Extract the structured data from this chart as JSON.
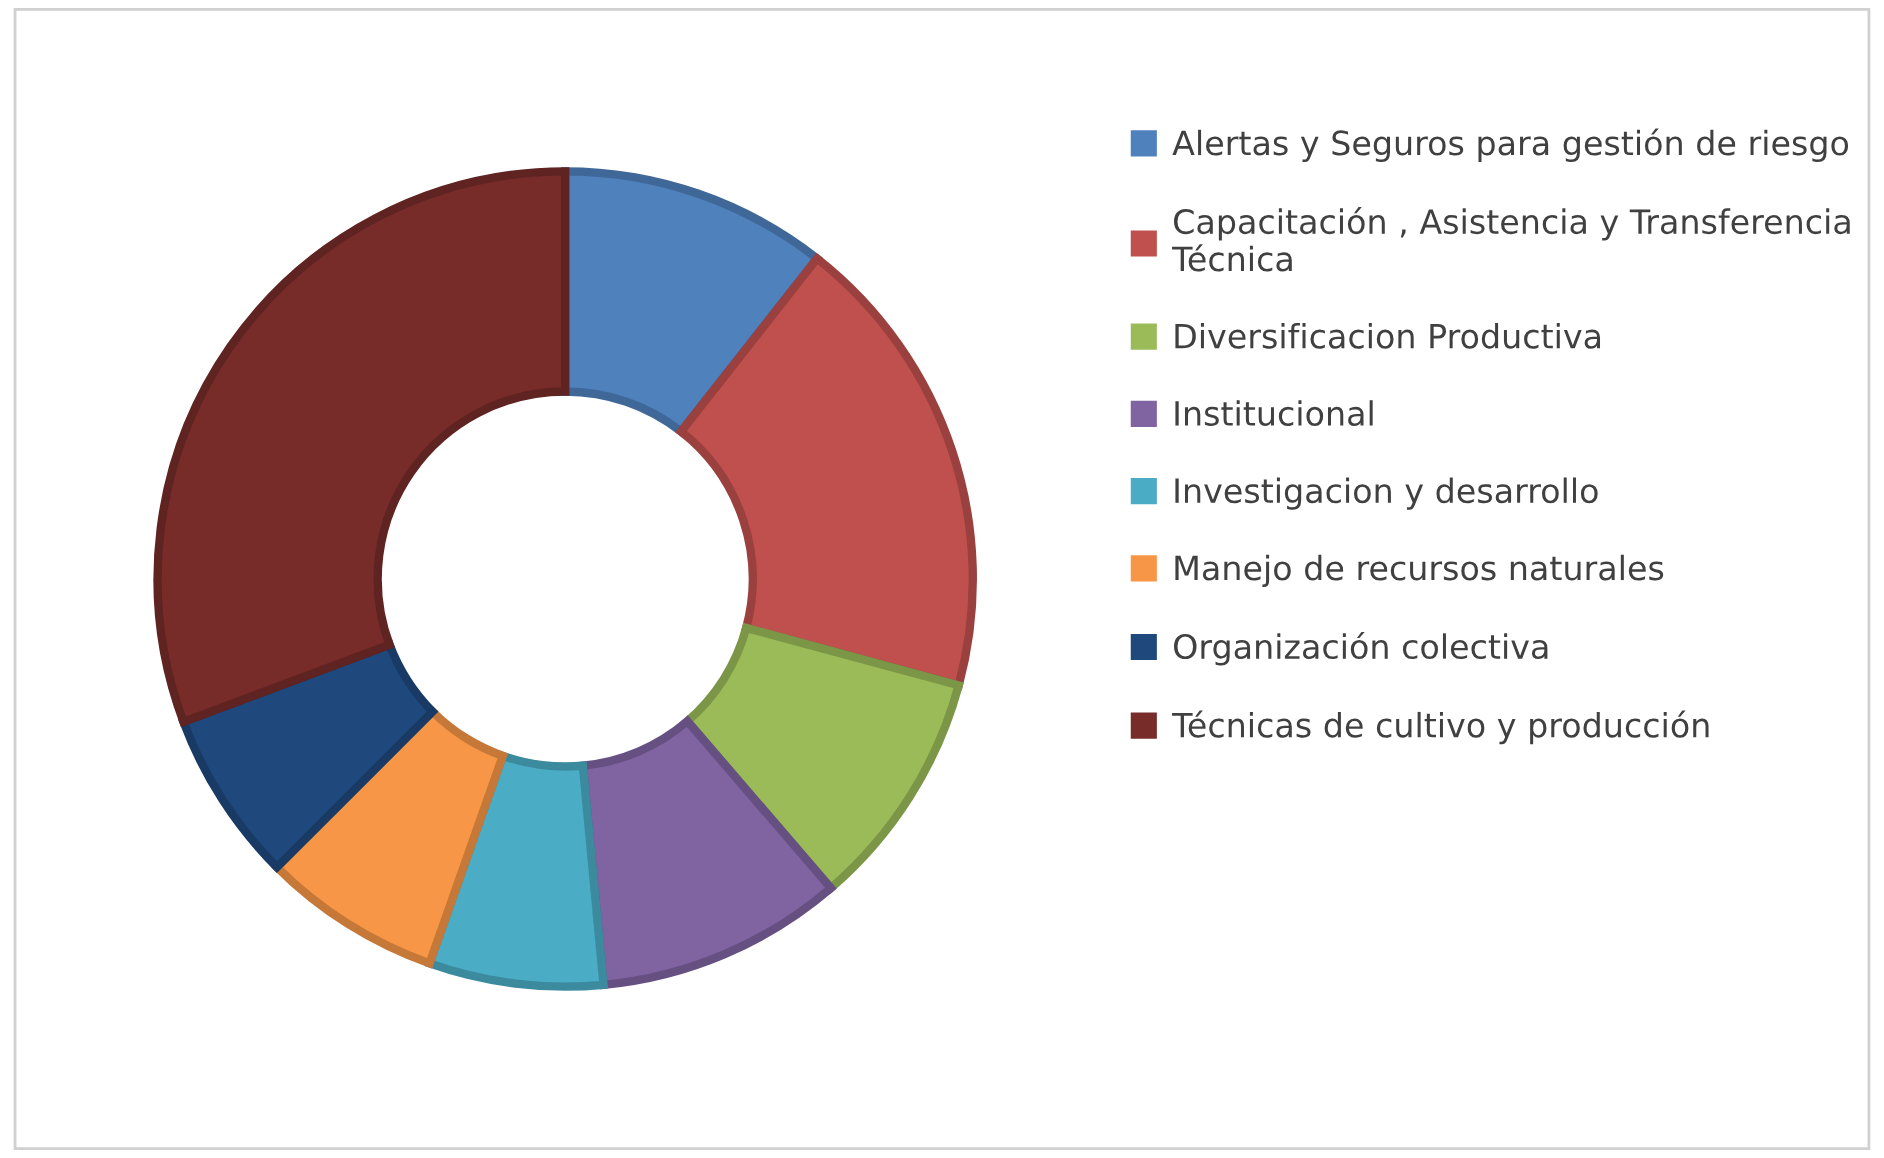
{
  "chart_data": {
    "type": "donut",
    "categories": [
      "Alertas y Seguros para gestión de riesgo",
      "Capacitación , Asistencia y Transferencia\nTécnica",
      "Diversificacion Productiva",
      "Institucional",
      "Investigacion y desarrollo",
      "Manejo de recursos naturales",
      "Organización colectiva",
      "Técnicas de cultivo y producción"
    ],
    "values": [
      10.6,
      18.6,
      9.5,
      9.8,
      6.9,
      7.1,
      6.8,
      30.7
    ],
    "colors": [
      "#4f81bd",
      "#c0504d",
      "#9bbb59",
      "#8064a2",
      "#4bacc6",
      "#f79646",
      "#1f497d",
      "#772c2a"
    ],
    "legend": "right"
  }
}
